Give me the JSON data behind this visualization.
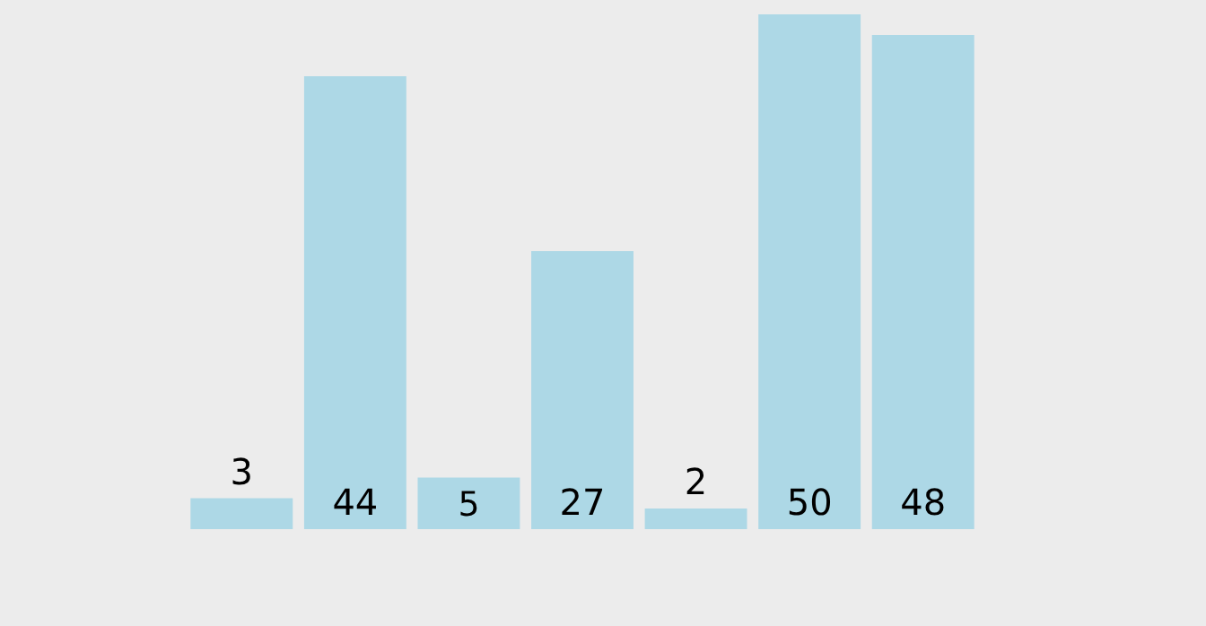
{
  "chart_data": {
    "type": "bar",
    "categories": [
      null,
      null,
      null,
      null,
      null,
      null,
      null
    ],
    "values": [
      3,
      44,
      5,
      27,
      2,
      50,
      48
    ],
    "color": "#add8e6",
    "data_labels": true
  }
}
